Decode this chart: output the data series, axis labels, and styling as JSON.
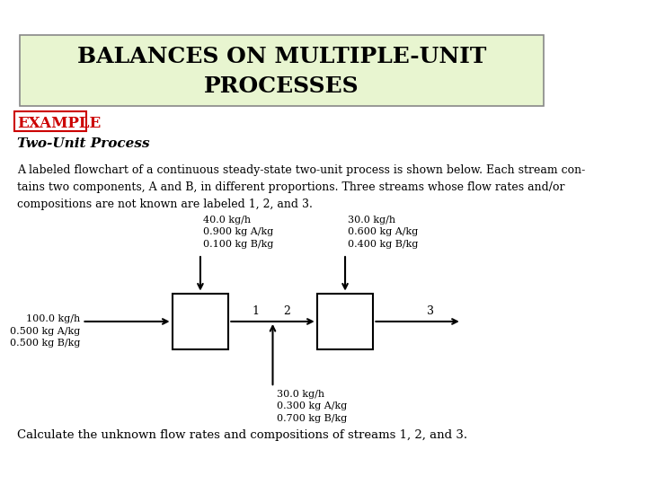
{
  "title_line1": "BALANCES ON MULTIPLE-UNIT",
  "title_line2": "PROCESSES",
  "title_bg": "#e8f5d0",
  "example_text": "EXAMPLE",
  "example_color": "#cc0000",
  "subtitle": "Two-Unit Process",
  "paragraph": "A labeled flowchart of a continuous steady-state two-unit process is shown below. Each stream con-\ntains two components, A and B, in different proportions. Three streams whose flow rates and/or\ncompositions are not known are labeled 1, 2, and 3.",
  "footer": "Calculate the unknown flow rates and compositions of streams 1, 2, and 3.",
  "stream_feed_label": "100.0 kg/h\n0.500 kg A/kg\n0.500 kg B/kg",
  "stream_top1_label": "40.0 kg/h\n0.900 kg A/kg\n0.100 kg B/kg",
  "stream_top2_label": "30.0 kg/h\n0.600 kg A/kg\n0.400 kg B/kg",
  "stream_bottom_label": "30.0 kg/h\n0.300 kg A/kg\n0.700 kg B/kg",
  "stream1_label": "1",
  "stream2_label": "2",
  "stream3_label": "3",
  "bg_color": "#ffffff"
}
